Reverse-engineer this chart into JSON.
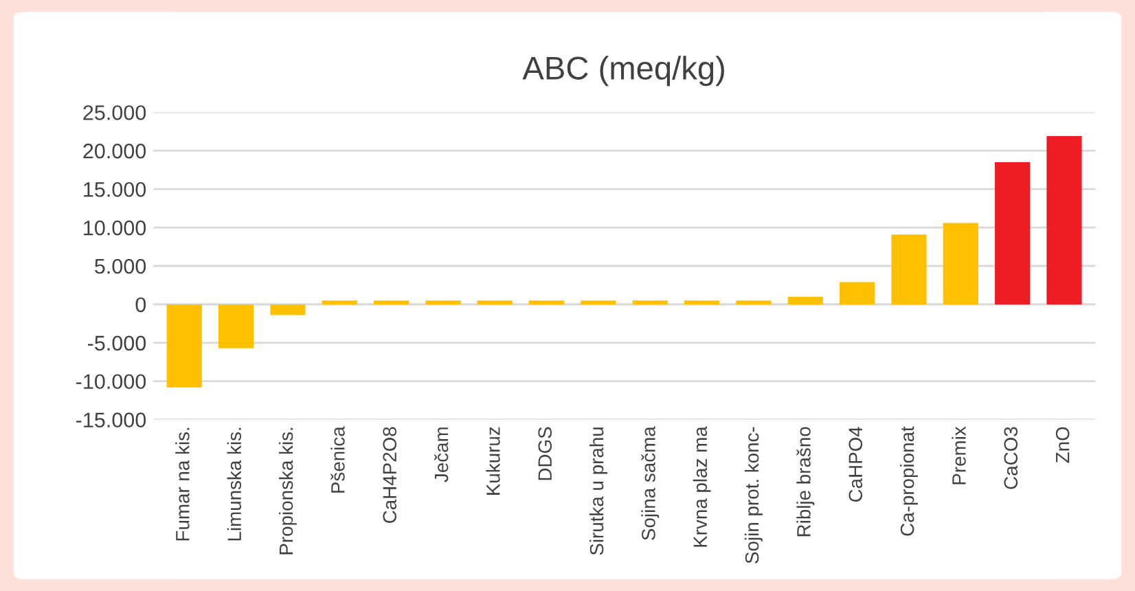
{
  "chart_data": {
    "type": "bar",
    "title": "ABC (meq/kg)",
    "categories": [
      "Fumar na kis.",
      "Limunska kis.",
      "Propionska kis.",
      "Pšenica",
      "CaH4P2O8",
      "Ječam",
      "Kukuruz",
      "DDGS",
      "Sirutka u prahu",
      "Sojina sačma",
      "Krvna plaz ma",
      "Sojin prot. konc-",
      "Riblje brašno",
      "CaHPO4",
      "Ca-propionat",
      "Premix",
      "CaCO3",
      "ZnO"
    ],
    "values": [
      -10800,
      -5700,
      -1400,
      500,
      500,
      500,
      500,
      500,
      500,
      500,
      500,
      500,
      1000,
      2900,
      9100,
      10600,
      18500,
      21900
    ],
    "colors": [
      "#ffc000",
      "#ffc000",
      "#ffc000",
      "#ffc000",
      "#ffc000",
      "#ffc000",
      "#ffc000",
      "#ffc000",
      "#ffc000",
      "#ffc000",
      "#ffc000",
      "#ffc000",
      "#ffc000",
      "#ffc000",
      "#ffc000",
      "#ffc000",
      "#ee1c25",
      "#ee1c25"
    ],
    "ylim": [
      -15000,
      25000
    ],
    "yticks": [
      {
        "value": -15000,
        "label": "-15.000"
      },
      {
        "value": -10000,
        "label": "-10.000"
      },
      {
        "value": -5000,
        "label": "-5.000"
      },
      0,
      {
        "value": 5000,
        "label": "5.000"
      },
      {
        "value": 10000,
        "label": "10.000"
      },
      {
        "value": 15000,
        "label": "15.000"
      },
      {
        "value": 20000,
        "label": "20.000"
      },
      {
        "value": 25000,
        "label": "25.000"
      }
    ],
    "grid": "y"
  }
}
